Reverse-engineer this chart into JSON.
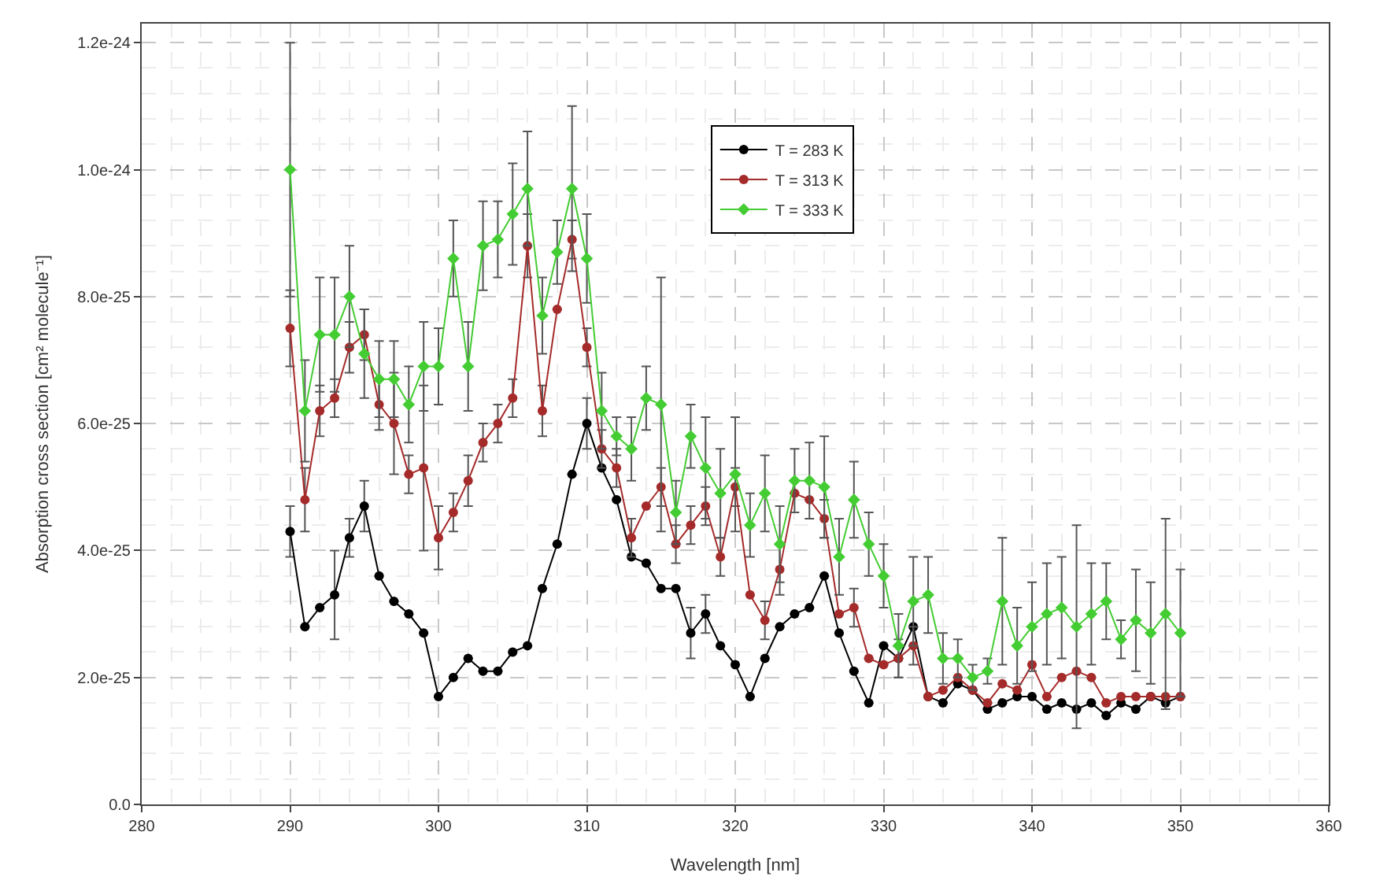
{
  "chart_data": {
    "type": "line",
    "xlabel": "Wavelength [nm]",
    "ylabel": "Absorption cross section [cm² molecule⁻¹]",
    "x": [
      290,
      291,
      292,
      293,
      294,
      295,
      296,
      297,
      298,
      299,
      300,
      301,
      302,
      303,
      304,
      305,
      306,
      307,
      308,
      309,
      310,
      311,
      312,
      313,
      314,
      315,
      316,
      317,
      318,
      319,
      320,
      321,
      322,
      323,
      324,
      325,
      326,
      327,
      328,
      329,
      330,
      331,
      332,
      333,
      334,
      335,
      336,
      337,
      338,
      339,
      340,
      341,
      342,
      343,
      344,
      345,
      346,
      347,
      348,
      349,
      350
    ],
    "xlim": [
      280,
      360
    ],
    "xticks": [
      280,
      290,
      300,
      310,
      320,
      330,
      340,
      350,
      360
    ],
    "ylim": [
      0,
      1.23e-24
    ],
    "yticks": [
      {
        "value": 0,
        "label": "0.0"
      },
      {
        "value": 2e-25,
        "label": "2.0e-25"
      },
      {
        "value": 4e-25,
        "label": "4.0e-25"
      },
      {
        "value": 6e-25,
        "label": "6.0e-25"
      },
      {
        "value": 8e-25,
        "label": "8.0e-25"
      },
      {
        "value": 1e-24,
        "label": "1.0e-24"
      },
      {
        "value": 1.2e-24,
        "label": "1.2e-24"
      }
    ],
    "grid": true,
    "legend": "top right",
    "line_style": "solid",
    "series": [
      {
        "name": "T = 283 K",
        "color": "#000000",
        "marker": "circle",
        "values": [
          4.3e-25,
          2.8e-25,
          3.1e-25,
          3.3e-25,
          4.2e-25,
          4.7e-25,
          3.6e-25,
          3.2e-25,
          3e-25,
          2.7e-25,
          1.7e-25,
          2e-25,
          2.3e-25,
          2.1e-25,
          2.1e-25,
          2.4e-25,
          2.5e-25,
          3.4e-25,
          4.1e-25,
          5.2e-25,
          6e-25,
          5.3e-25,
          4.8e-25,
          3.9e-25,
          3.8e-25,
          3.4e-25,
          3.4e-25,
          2.7e-25,
          3e-25,
          2.5e-25,
          2.2e-25,
          1.7e-25,
          2.3e-25,
          2.8e-25,
          3e-25,
          3.1e-25,
          3.6e-25,
          2.7e-25,
          2.1e-25,
          1.6e-25,
          2.5e-25,
          2.3e-25,
          2.8e-25,
          1.7e-25,
          1.6e-25,
          1.9e-25,
          1.8e-25,
          1.5e-25,
          1.6e-25,
          1.7e-25,
          1.7e-25,
          1.5e-25,
          1.6e-25,
          1.5e-25,
          1.6e-25,
          1.4e-25,
          1.6e-25,
          1.5e-25,
          1.7e-25,
          1.6e-25,
          1.7e-25
        ],
        "errors": [
          4e-26,
          null,
          null,
          7e-26,
          3e-26,
          4e-26,
          null,
          null,
          null,
          null,
          null,
          null,
          null,
          null,
          null,
          null,
          null,
          null,
          null,
          null,
          4e-26,
          null,
          null,
          null,
          null,
          null,
          null,
          4e-26,
          3e-26,
          null,
          null,
          null,
          null,
          null,
          null,
          null,
          null,
          null,
          null,
          null,
          null,
          null,
          null,
          null,
          null,
          null,
          null,
          null,
          null,
          null,
          null,
          null,
          null,
          null,
          null,
          null,
          null,
          null,
          null,
          null,
          null
        ]
      },
      {
        "name": "T = 313 K",
        "color": "#a52a2a",
        "marker": "circle",
        "values": [
          7.5e-25,
          4.8e-25,
          6.2e-25,
          6.4e-25,
          7.2e-25,
          7.4e-25,
          6.3e-25,
          6e-25,
          5.2e-25,
          5.3e-25,
          4.2e-25,
          4.6e-25,
          5.1e-25,
          5.7e-25,
          6e-25,
          6.4e-25,
          8.8e-25,
          6.2e-25,
          7.8e-25,
          8.9e-25,
          7.2e-25,
          5.6e-25,
          5.3e-25,
          4.2e-25,
          4.7e-25,
          5e-25,
          4.1e-25,
          4.4e-25,
          4.7e-25,
          3.9e-25,
          5e-25,
          3.3e-25,
          2.9e-25,
          3.7e-25,
          4.9e-25,
          4.8e-25,
          4.5e-25,
          3e-25,
          3.1e-25,
          2.3e-25,
          2.2e-25,
          2.3e-25,
          2.5e-25,
          1.7e-25,
          1.8e-25,
          2e-25,
          1.8e-25,
          1.6e-25,
          1.9e-25,
          1.8e-25,
          2.2e-25,
          1.7e-25,
          2e-25,
          2.1e-25,
          2e-25,
          1.6e-25,
          1.7e-25,
          1.7e-25,
          1.7e-25,
          1.7e-25,
          1.7e-25
        ],
        "errors": [
          6e-26,
          5e-26,
          4e-26,
          3e-26,
          4e-26,
          4e-26,
          4e-26,
          8e-26,
          3e-26,
          1.3e-25,
          5e-26,
          3e-26,
          4e-26,
          3e-26,
          3e-26,
          3e-26,
          5e-26,
          4e-26,
          null,
          3e-26,
          3e-26,
          3e-26,
          3e-26,
          3e-26,
          null,
          3e-26,
          3e-26,
          3e-26,
          3e-26,
          3e-26,
          3e-26,
          null,
          3e-26,
          4e-26,
          null,
          null,
          3e-26,
          null,
          3e-26,
          null,
          null,
          3e-26,
          3e-26,
          null,
          null,
          null,
          null,
          null,
          null,
          null,
          null,
          null,
          null,
          null,
          null,
          null,
          null,
          null,
          null,
          null,
          null
        ]
      },
      {
        "name": "T = 333 K",
        "color": "#44cc33",
        "marker": "diamond",
        "values": [
          1e-24,
          6.2e-25,
          7.4e-25,
          7.4e-25,
          8e-25,
          7.1e-25,
          6.7e-25,
          6.7e-25,
          6.3e-25,
          6.9e-25,
          6.9e-25,
          8.6e-25,
          6.9e-25,
          8.8e-25,
          8.9e-25,
          9.3e-25,
          9.7e-25,
          7.7e-25,
          8.7e-25,
          9.7e-25,
          8.6e-25,
          6.2e-25,
          5.8e-25,
          5.6e-25,
          6.4e-25,
          6.3e-25,
          4.6e-25,
          5.8e-25,
          5.3e-25,
          4.9e-25,
          5.2e-25,
          4.4e-25,
          4.9e-25,
          4.1e-25,
          5.1e-25,
          5.1e-25,
          5e-25,
          3.9e-25,
          4.8e-25,
          4.1e-25,
          3.6e-25,
          2.5e-25,
          3.2e-25,
          3.3e-25,
          2.3e-25,
          2.3e-25,
          2e-25,
          2.1e-25,
          3.2e-25,
          2.5e-25,
          2.8e-25,
          3e-25,
          3.1e-25,
          2.8e-25,
          3e-25,
          3.2e-25,
          2.6e-25,
          2.9e-25,
          2.7e-25,
          3e-25,
          2.7e-25
        ],
        "errors": [
          2e-25,
          8e-26,
          9e-26,
          9e-26,
          8e-26,
          7e-26,
          6e-26,
          6e-26,
          6e-26,
          7e-26,
          6e-26,
          6e-26,
          7e-26,
          7e-26,
          6e-26,
          8e-26,
          9e-26,
          6e-26,
          5e-26,
          1.3e-25,
          7e-26,
          6e-26,
          3e-26,
          5e-26,
          5e-26,
          2e-25,
          5e-26,
          5e-26,
          8e-26,
          7e-26,
          9e-26,
          5e-26,
          6e-26,
          6e-26,
          5e-26,
          6e-26,
          8e-26,
          6e-26,
          6e-26,
          5e-26,
          5e-26,
          5e-26,
          7e-26,
          6e-26,
          4e-26,
          3e-26,
          2e-26,
          2e-26,
          1e-25,
          6e-26,
          7e-26,
          8e-26,
          8e-26,
          1.6e-25,
          8e-26,
          6e-26,
          3e-26,
          8e-26,
          8e-26,
          1.5e-25,
          1e-25
        ]
      }
    ]
  }
}
